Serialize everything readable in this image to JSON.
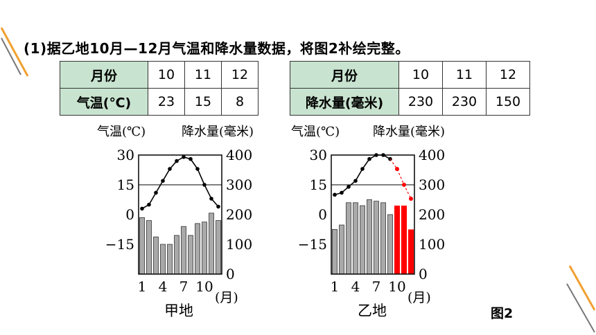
{
  "question": "(1)据乙地10月—12月气温和降水量数据，将图2补绘完整。",
  "tables": [
    {
      "rows": [
        {
          "header": "月份",
          "cells": [
            "10",
            "11",
            "12"
          ]
        },
        {
          "header": "气温(℃)",
          "cells": [
            "23",
            "15",
            "8"
          ]
        }
      ]
    },
    {
      "rows": [
        {
          "header": "月份",
          "cells": [
            "10",
            "11",
            "12"
          ]
        },
        {
          "header": "降水量(毫米)",
          "cells": [
            "230",
            "230",
            "150"
          ]
        }
      ]
    }
  ],
  "figure_label": "图2",
  "colors": {
    "bar": "#a9a9a9",
    "completion": "#ff0000",
    "table_header": "#c8e3cf",
    "decor": "#f0a030"
  },
  "chart_data": [
    {
      "type": "bar",
      "title": "甲地",
      "left_axis_label": "气温(℃)",
      "right_axis_label": "降水量(毫米)",
      "xlabel": "(月)",
      "x_ticks": [
        "1",
        "4",
        "7",
        "10"
      ],
      "categories": [
        1,
        2,
        3,
        4,
        5,
        6,
        7,
        8,
        9,
        10,
        11,
        12
      ],
      "temp_ticks": [
        "30",
        "15",
        "0",
        "-15"
      ],
      "precip_ticks": [
        "400",
        "300",
        "200",
        "100",
        "0"
      ],
      "temp_range": [
        -30,
        30
      ],
      "precip_range": [
        0,
        400
      ],
      "grid": "horizontal at 15 and 30",
      "temperature": [
        3,
        5,
        11,
        17,
        23,
        27,
        29,
        28,
        23,
        15,
        8,
        4
      ],
      "precipitation": [
        190,
        180,
        125,
        100,
        100,
        130,
        160,
        130,
        170,
        175,
        205,
        180
      ]
    },
    {
      "type": "bar",
      "title": "乙地",
      "left_axis_label": "气温(℃)",
      "right_axis_label": "降水量(毫米)",
      "xlabel": "(月)",
      "x_ticks": [
        "1",
        "4",
        "7",
        "10"
      ],
      "categories": [
        1,
        2,
        3,
        4,
        5,
        6,
        7,
        8,
        9,
        10,
        11,
        12
      ],
      "temp_ticks": [
        "30",
        "15",
        "0",
        "-15"
      ],
      "precip_ticks": [
        "400",
        "300",
        "200",
        "100",
        "0"
      ],
      "temp_range": [
        -30,
        30
      ],
      "precip_range": [
        0,
        400
      ],
      "grid": "horizontal at 15 and 30",
      "temperature": [
        10,
        11,
        14,
        17,
        23,
        28,
        30,
        30,
        28,
        null,
        null,
        null
      ],
      "precipitation": [
        150,
        165,
        240,
        240,
        230,
        250,
        245,
        240,
        200,
        null,
        null,
        null
      ],
      "completion": {
        "months": [
          10,
          11,
          12
        ],
        "temperature": [
          23,
          15,
          8
        ],
        "precipitation": [
          230,
          230,
          150
        ]
      }
    }
  ]
}
